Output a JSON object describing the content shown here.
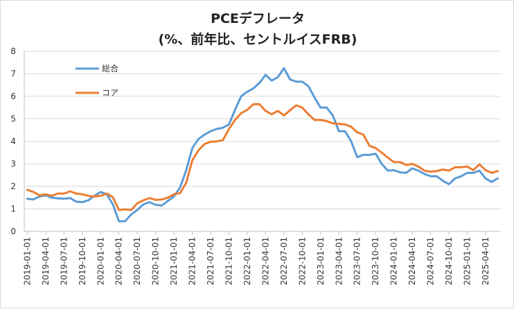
{
  "chart_data": {
    "type": "line",
    "title": "PCEデフレータ",
    "subtitle": "(%、前年比、セントルイスFRB)",
    "xlabel": "",
    "ylabel": "",
    "ylim": [
      0,
      8
    ],
    "yticks": [
      0,
      1,
      2,
      3,
      4,
      5,
      6,
      7,
      8
    ],
    "grid": "horizontal",
    "legend": "top-left",
    "x_tick_labels": [
      "2019-01-01",
      "2019-04-01",
      "2019-07-01",
      "2019-10-01",
      "2020-01-01",
      "2020-04-01",
      "2020-07-01",
      "2020-10-01",
      "2021-01-01",
      "2021-04-01",
      "2021-07-01",
      "2021-10-01",
      "2022-01-01",
      "2022-04-01",
      "2022-07-01",
      "2022-10-01",
      "2023-01-01",
      "2023-04-01",
      "2023-07-01",
      "2023-10-01",
      "2024-01-01",
      "2024-04-01",
      "2024-07-01",
      "2024-10-01",
      "2025-01-01",
      "2025-04-01"
    ],
    "x": [
      "2019-01",
      "2019-02",
      "2019-03",
      "2019-04",
      "2019-05",
      "2019-06",
      "2019-07",
      "2019-08",
      "2019-09",
      "2019-10",
      "2019-11",
      "2019-12",
      "2020-01",
      "2020-02",
      "2020-03",
      "2020-04",
      "2020-05",
      "2020-06",
      "2020-07",
      "2020-08",
      "2020-09",
      "2020-10",
      "2020-11",
      "2020-12",
      "2021-01",
      "2021-02",
      "2021-03",
      "2021-04",
      "2021-05",
      "2021-06",
      "2021-07",
      "2021-08",
      "2021-09",
      "2021-10",
      "2021-11",
      "2021-12",
      "2022-01",
      "2022-02",
      "2022-03",
      "2022-04",
      "2022-05",
      "2022-06",
      "2022-07",
      "2022-08",
      "2022-09",
      "2022-10",
      "2022-11",
      "2022-12",
      "2023-01",
      "2023-02",
      "2023-03",
      "2023-04",
      "2023-05",
      "2023-06",
      "2023-07",
      "2023-08",
      "2023-09",
      "2023-10",
      "2023-11",
      "2023-12",
      "2024-01",
      "2024-02",
      "2024-03",
      "2024-04",
      "2024-05",
      "2024-06",
      "2024-07",
      "2024-08",
      "2024-09",
      "2024-10",
      "2024-11",
      "2024-12",
      "2025-01",
      "2025-02",
      "2025-03",
      "2025-04",
      "2025-05",
      "2025-06"
    ],
    "series": [
      {
        "name": "総合",
        "color": "#5b9bd5",
        "values": [
          1.45,
          1.42,
          1.55,
          1.6,
          1.5,
          1.47,
          1.45,
          1.48,
          1.32,
          1.3,
          1.38,
          1.58,
          1.75,
          1.65,
          1.2,
          0.45,
          0.45,
          0.75,
          0.95,
          1.2,
          1.3,
          1.18,
          1.15,
          1.35,
          1.55,
          1.95,
          2.7,
          3.7,
          4.1,
          4.3,
          4.45,
          4.55,
          4.6,
          4.75,
          5.4,
          6.0,
          6.2,
          6.35,
          6.6,
          6.95,
          6.7,
          6.85,
          7.25,
          6.75,
          6.65,
          6.65,
          6.45,
          5.95,
          5.5,
          5.5,
          5.15,
          4.45,
          4.45,
          4.0,
          3.3,
          3.4,
          3.4,
          3.45,
          3.0,
          2.7,
          2.72,
          2.62,
          2.6,
          2.8,
          2.7,
          2.55,
          2.45,
          2.45,
          2.25,
          2.1,
          2.35,
          2.45,
          2.6,
          2.6,
          2.7,
          2.35,
          2.2,
          2.35
        ]
      },
      {
        "name": "コア",
        "color": "#ed7d31",
        "values": [
          1.85,
          1.75,
          1.6,
          1.65,
          1.58,
          1.68,
          1.68,
          1.78,
          1.68,
          1.65,
          1.58,
          1.55,
          1.58,
          1.68,
          1.52,
          0.95,
          0.98,
          0.95,
          1.25,
          1.38,
          1.48,
          1.4,
          1.42,
          1.5,
          1.65,
          1.7,
          2.15,
          3.15,
          3.6,
          3.88,
          3.98,
          4.0,
          4.05,
          4.55,
          4.95,
          5.25,
          5.4,
          5.65,
          5.65,
          5.35,
          5.2,
          5.35,
          5.15,
          5.38,
          5.6,
          5.5,
          5.2,
          4.95,
          4.95,
          4.9,
          4.8,
          4.78,
          4.75,
          4.65,
          4.4,
          4.3,
          3.8,
          3.7,
          3.5,
          3.28,
          3.08,
          3.08,
          2.95,
          3.0,
          2.88,
          2.7,
          2.65,
          2.68,
          2.75,
          2.7,
          2.85,
          2.85,
          2.88,
          2.72,
          2.98,
          2.72,
          2.6,
          2.68
        ]
      }
    ]
  }
}
